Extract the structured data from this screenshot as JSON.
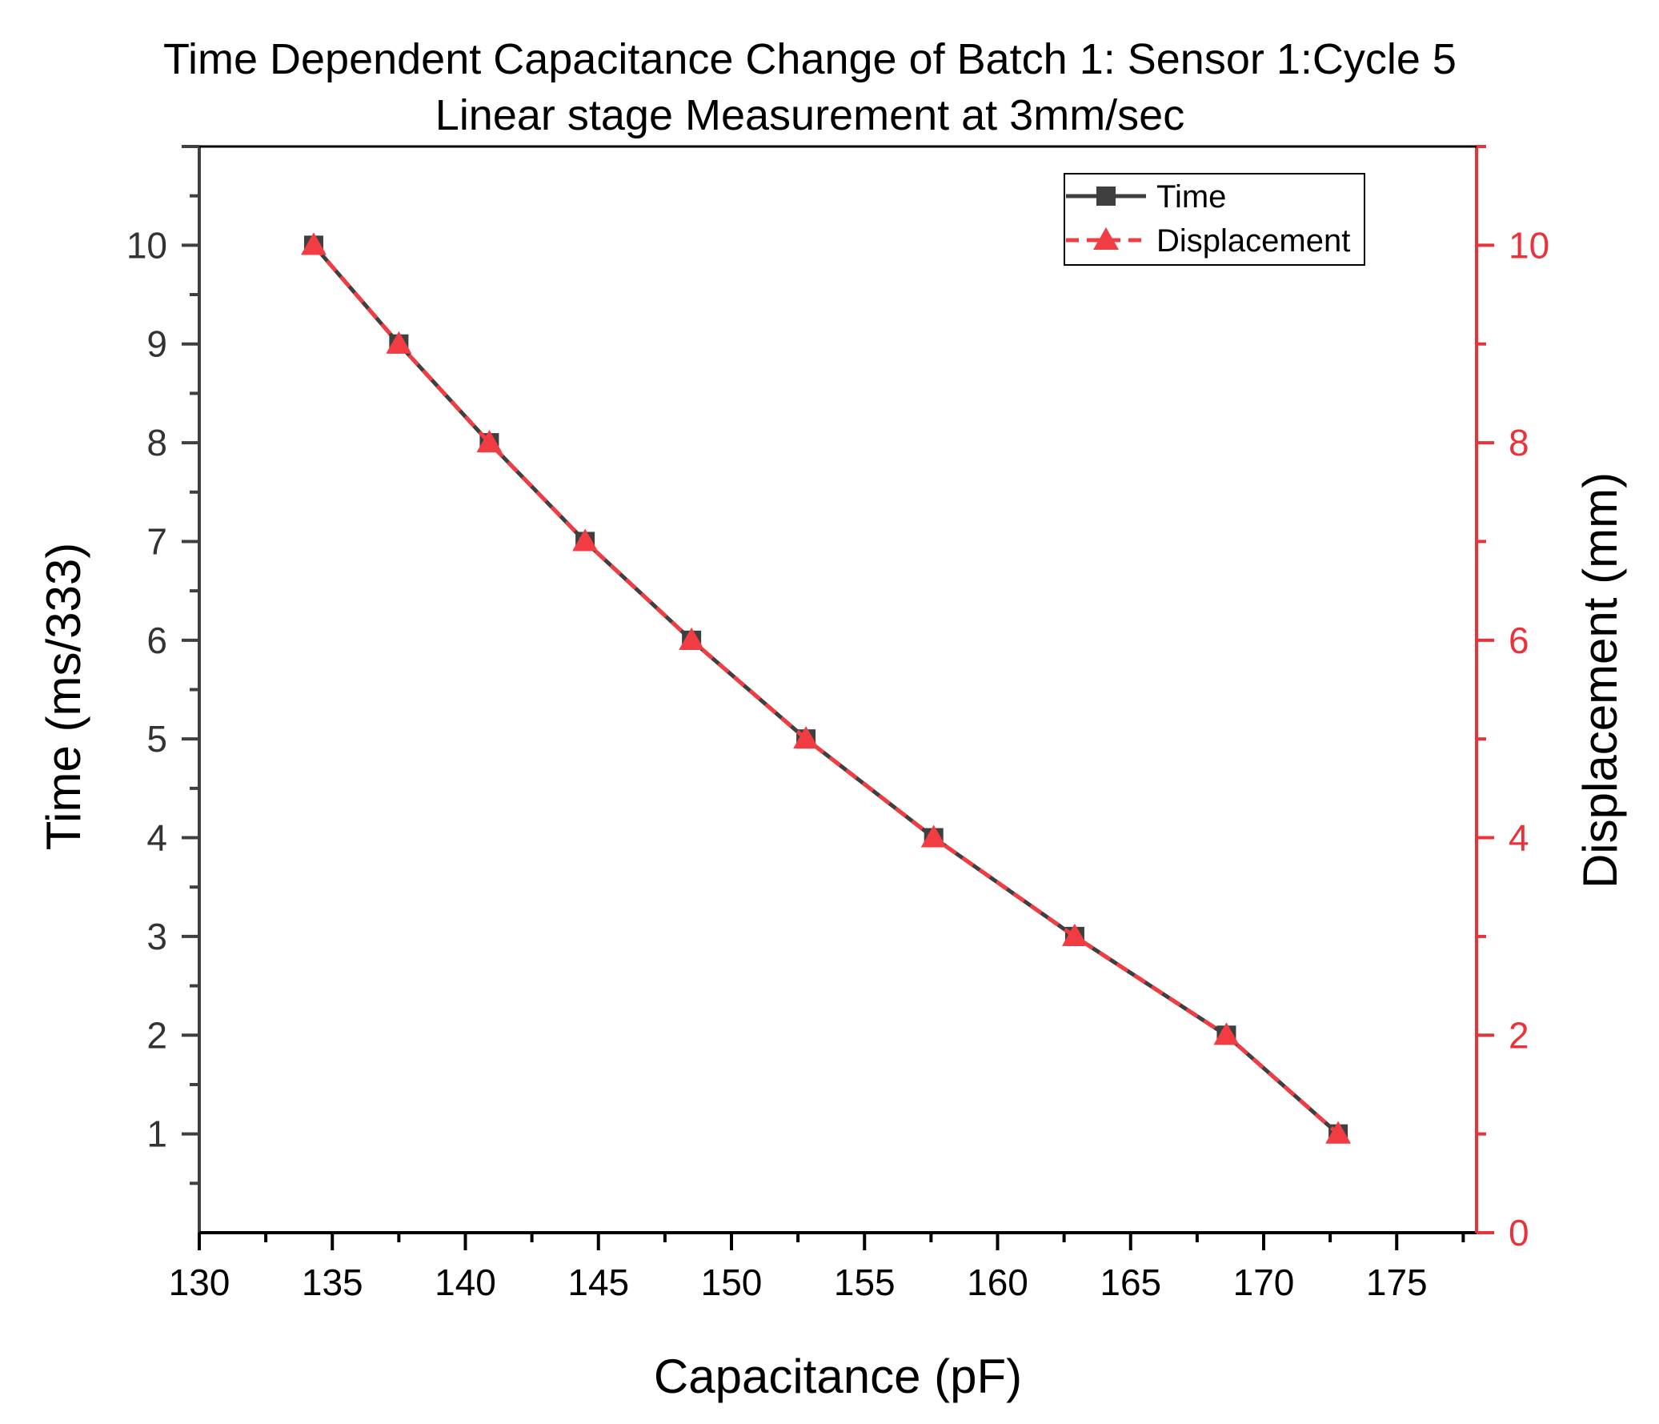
{
  "chart_data": {
    "type": "line",
    "title": "Time Dependent Capacitance Change of Batch 1: Sensor 1:Cycle 5",
    "subtitle": "Linear stage Measurement at 3mm/sec",
    "xlabel": "Capacitance (pF)",
    "ylabel_left": "Time (ms/333)",
    "ylabel_right": "Displacement (mm)",
    "xlim": [
      130,
      178
    ],
    "ylim_left": [
      0,
      11
    ],
    "ylim_right": [
      0,
      11
    ],
    "x_ticks": [
      130,
      135,
      140,
      145,
      150,
      155,
      160,
      165,
      170,
      175
    ],
    "y_ticks_left": [
      1,
      2,
      3,
      4,
      5,
      6,
      7,
      8,
      9,
      10
    ],
    "y_ticks_right": [
      0,
      2,
      4,
      6,
      8,
      10
    ],
    "legend_position": "top-right",
    "series": [
      {
        "name": "Time",
        "axis": "left",
        "color": "#3f3f3f",
        "marker": "square",
        "line": "solid",
        "x": [
          134.3,
          137.5,
          140.9,
          144.5,
          148.5,
          152.8,
          157.6,
          162.9,
          168.6,
          172.8
        ],
        "y": [
          10,
          9,
          8,
          7,
          6,
          5,
          4,
          3,
          2,
          1
        ]
      },
      {
        "name": "Displacement",
        "axis": "right",
        "color": "#f03c42",
        "marker": "triangle",
        "line": "dashed",
        "x": [
          134.3,
          137.5,
          140.9,
          144.5,
          148.5,
          152.8,
          157.6,
          162.9,
          168.6,
          172.8
        ],
        "y": [
          10,
          9,
          8,
          7,
          6,
          5,
          4,
          3,
          2,
          1
        ]
      }
    ]
  }
}
